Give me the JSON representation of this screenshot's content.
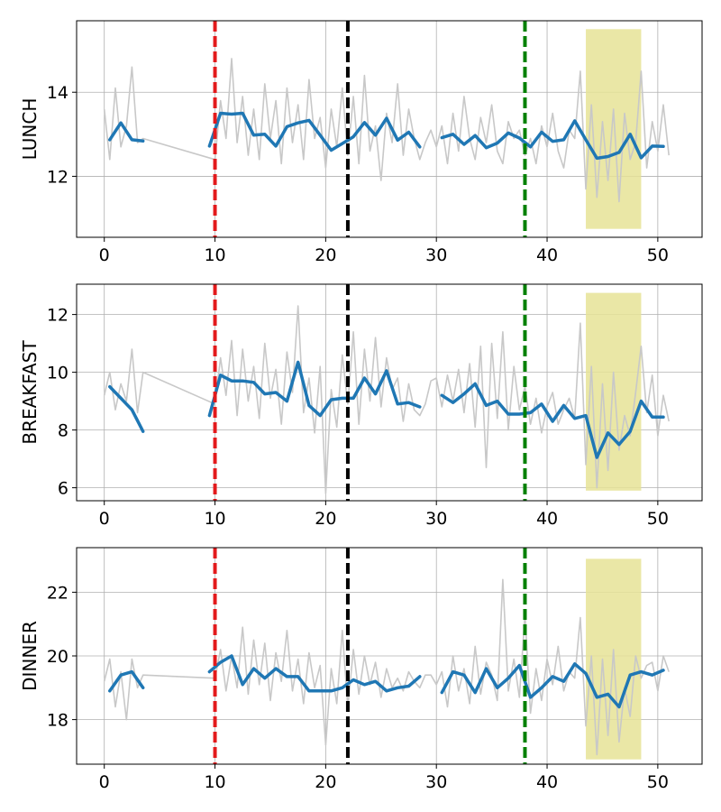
{
  "chart_data": [
    {
      "type": "line",
      "ylabel": "LUNCH",
      "xlim": [
        -2.5,
        54
      ],
      "ylim": [
        10.55,
        15.7
      ],
      "xticks": [
        0,
        10,
        20,
        30,
        40,
        50
      ],
      "yticks": [
        12,
        14
      ],
      "grid": true,
      "vlines": [
        {
          "x": 10,
          "color": "#e31a1c",
          "style": "dashed"
        },
        {
          "x": 22,
          "color": "#000000",
          "style": "dashed"
        },
        {
          "x": 38,
          "color": "#008000",
          "style": "dashed"
        }
      ],
      "shaded_region": {
        "x0": 43.5,
        "x1": 48.5,
        "y0": 10.75,
        "y1": 15.5,
        "color": "#e6e396"
      },
      "raw_series": {
        "color": "#c8c8c8",
        "x": [
          0,
          0.5,
          1,
          1.5,
          2,
          2.5,
          3,
          3.5,
          10,
          10.5,
          11,
          11.5,
          12,
          12.5,
          13,
          13.5,
          14,
          14.5,
          15,
          15.5,
          16,
          16.5,
          17,
          17.5,
          18,
          18.5,
          19,
          19.5,
          20,
          20.5,
          21,
          21.5,
          22,
          22.5,
          23,
          23.5,
          24,
          24.5,
          25,
          25.5,
          26,
          26.5,
          27,
          27.5,
          28,
          28.5,
          29,
          29.5,
          30,
          30.5,
          31,
          31.5,
          32,
          32.5,
          33,
          33.5,
          34,
          34.5,
          35,
          35.5,
          36,
          36.5,
          37,
          37.5,
          38,
          38.5,
          39,
          39.5,
          40,
          40.5,
          41,
          41.5,
          42,
          42.5,
          43,
          43.5,
          44,
          44.5,
          45,
          45.5,
          46,
          46.5,
          47,
          47.5,
          48,
          48.5,
          49,
          49.5,
          50,
          50.5,
          51
        ],
        "values": [
          13.6,
          12.4,
          14.1,
          12.7,
          13.2,
          14.6,
          12.8,
          12.9,
          12.4,
          13.8,
          12.9,
          14.8,
          12.8,
          13.9,
          12.5,
          13.6,
          12.4,
          14.2,
          12.9,
          13.8,
          12.3,
          14.1,
          12.8,
          13.7,
          12.4,
          14.3,
          12.9,
          13.4,
          12.2,
          13.6,
          12.7,
          14.1,
          12.5,
          13.9,
          12.3,
          14.4,
          12.6,
          13.2,
          11.9,
          13.5,
          12.8,
          14.2,
          12.5,
          13.6,
          12.9,
          12.4,
          12.8,
          13.1,
          12.7,
          13.2,
          12.3,
          13.5,
          12.6,
          13.9,
          12.9,
          12.4,
          13.4,
          12.8,
          13.7,
          12.6,
          12.3,
          13.3,
          12.9,
          13.1,
          12.5,
          12.9,
          12.3,
          13.2,
          12.7,
          13.5,
          12.6,
          12.2,
          13.1,
          12.9,
          14.5,
          11.7,
          13.7,
          11.5,
          13.3,
          11.9,
          13.6,
          11.4,
          13.5,
          12.4,
          12.8,
          14.5,
          12.2,
          13.3,
          12.6,
          13.7,
          12.5
        ]
      },
      "smooth_series": {
        "color": "#1f77b4",
        "segments": [
          {
            "x": [
              0.5,
              1.5,
              2.5,
              3.5
            ],
            "y": [
              12.87,
              13.27,
              12.87,
              12.84
            ]
          },
          {
            "x": [
              9.5,
              10.5,
              11.5,
              12.5,
              13.5,
              14.5,
              15.5,
              16.5,
              17.5,
              18.5,
              19.5,
              20.5,
              21.5,
              22.5,
              23.5,
              24.5,
              25.5,
              26.5,
              27.5,
              28.5
            ],
            "y": [
              12.72,
              13.5,
              13.48,
              13.5,
              12.98,
              13.0,
              12.72,
              13.18,
              13.27,
              13.33,
              12.98,
              12.62,
              12.78,
              12.94,
              13.28,
              12.98,
              13.38,
              12.86,
              13.05,
              12.7
            ]
          },
          {
            "x": [
              30.5,
              31.5,
              32.5,
              33.5,
              34.5,
              35.5,
              36.5,
              37.5,
              38.5,
              39.5,
              40.5,
              41.5,
              42.5,
              43.5,
              44.5,
              45.5,
              46.5,
              47.5,
              48.5,
              49.5,
              50.5
            ],
            "y": [
              12.92,
              13.0,
              12.76,
              12.97,
              12.68,
              12.79,
              13.03,
              12.91,
              12.7,
              13.05,
              12.83,
              12.87,
              13.32,
              12.87,
              12.43,
              12.47,
              12.57,
              13.0,
              12.44,
              12.72,
              12.71
            ]
          }
        ]
      }
    },
    {
      "type": "line",
      "ylabel": "BREAKFAST",
      "xlim": [
        -2.5,
        54
      ],
      "ylim": [
        5.55,
        13.05
      ],
      "xticks": [
        0,
        10,
        20,
        30,
        40,
        50
      ],
      "yticks": [
        6,
        8,
        10,
        12
      ],
      "grid": true,
      "vlines": [
        {
          "x": 10,
          "color": "#e31a1c",
          "style": "dashed"
        },
        {
          "x": 22,
          "color": "#000000",
          "style": "dashed"
        },
        {
          "x": 38,
          "color": "#008000",
          "style": "dashed"
        }
      ],
      "shaded_region": {
        "x0": 43.5,
        "x1": 48.5,
        "y0": 5.9,
        "y1": 12.75,
        "color": "#e6e396"
      },
      "raw_series": {
        "color": "#c8c8c8",
        "x": [
          0,
          0.5,
          1,
          1.5,
          2,
          2.5,
          3,
          3.5,
          10,
          10.5,
          11,
          11.5,
          12,
          12.5,
          13,
          13.5,
          14,
          14.5,
          15,
          15.5,
          16,
          16.5,
          17,
          17.5,
          18,
          18.5,
          19,
          19.5,
          20,
          20.5,
          21,
          21.5,
          22,
          22.5,
          23,
          23.5,
          24,
          24.5,
          25,
          25.5,
          26,
          26.5,
          27,
          27.5,
          28,
          28.5,
          29,
          29.5,
          30,
          30.5,
          31,
          31.5,
          32,
          32.5,
          33,
          33.5,
          34,
          34.5,
          35,
          35.5,
          36,
          36.5,
          37,
          37.5,
          38,
          38.5,
          39,
          39.5,
          40,
          40.5,
          41,
          41.5,
          42,
          42.5,
          43,
          43.5,
          44,
          44.5,
          45,
          45.5,
          46,
          46.5,
          47,
          47.5,
          48,
          48.5,
          49,
          49.5,
          50,
          50.5,
          51
        ],
        "values": [
          9.2,
          10.0,
          8.7,
          9.6,
          9.0,
          10.8,
          8.6,
          10.0,
          8.9,
          10.5,
          9.2,
          11.1,
          8.5,
          10.8,
          9.0,
          10.2,
          8.4,
          11.0,
          9.1,
          10.1,
          8.2,
          10.7,
          9.3,
          12.3,
          8.6,
          9.8,
          7.9,
          10.2,
          5.8,
          9.4,
          8.1,
          10.6,
          8.9,
          11.4,
          8.2,
          10.8,
          9.0,
          11.2,
          8.8,
          10.5,
          9.4,
          9.8,
          8.3,
          9.6,
          8.7,
          8.5,
          8.9,
          9.7,
          9.8,
          8.8,
          9.9,
          9.0,
          10.1,
          8.6,
          10.3,
          8.1,
          10.9,
          6.7,
          11.0,
          8.4,
          11.4,
          8.0,
          10.2,
          8.7,
          9.5,
          8.2,
          9.1,
          7.9,
          8.8,
          9.3,
          8.2,
          8.7,
          9.1,
          8.4,
          11.7,
          6.8,
          10.2,
          6.0,
          9.6,
          6.6,
          10.0,
          7.3,
          8.5,
          7.8,
          9.3,
          10.9,
          8.6,
          9.9,
          7.8,
          9.2,
          8.3
        ]
      },
      "smooth_series": {
        "color": "#1f77b4",
        "segments": [
          {
            "x": [
              0.5,
              1.5,
              2.5,
              3.5
            ],
            "y": [
              9.5,
              9.1,
              8.7,
              7.95
            ]
          },
          {
            "x": [
              9.5,
              10.5,
              11.5,
              12.5,
              13.5,
              14.5,
              15.5,
              16.5,
              17.5,
              18.5,
              19.5,
              20.5,
              21.5,
              22.5,
              23.5,
              24.5,
              25.5,
              26.5,
              27.5,
              28.5
            ],
            "y": [
              8.5,
              9.9,
              9.7,
              9.7,
              9.65,
              9.25,
              9.3,
              9.0,
              10.35,
              8.85,
              8.5,
              9.05,
              9.1,
              9.1,
              9.8,
              9.25,
              10.05,
              8.9,
              8.95,
              8.8
            ]
          },
          {
            "x": [
              30.5,
              31.5,
              32.5,
              33.5,
              34.5,
              35.5,
              36.5,
              37.5,
              38.5,
              39.5,
              40.5,
              41.5,
              42.5,
              43.5,
              44.5,
              45.5,
              46.5,
              47.5,
              48.5,
              49.5,
              50.5
            ],
            "y": [
              9.2,
              8.95,
              9.25,
              9.6,
              8.85,
              9.0,
              8.55,
              8.55,
              8.6,
              8.9,
              8.3,
              8.85,
              8.4,
              8.5,
              7.05,
              7.9,
              7.5,
              7.95,
              9.0,
              8.45,
              8.45
            ]
          }
        ]
      }
    },
    {
      "type": "line",
      "ylabel": "DINNER",
      "xlim": [
        -2.5,
        54
      ],
      "ylim": [
        16.6,
        23.4
      ],
      "xticks": [
        0,
        10,
        20,
        30,
        40,
        50
      ],
      "yticks": [
        18,
        20,
        22
      ],
      "grid": true,
      "vlines": [
        {
          "x": 10,
          "color": "#e31a1c",
          "style": "dashed"
        },
        {
          "x": 22,
          "color": "#000000",
          "style": "dashed"
        },
        {
          "x": 38,
          "color": "#008000",
          "style": "dashed"
        }
      ],
      "shaded_region": {
        "x0": 43.5,
        "x1": 48.5,
        "y0": 16.75,
        "y1": 23.05,
        "color": "#e6e396"
      },
      "raw_series": {
        "color": "#c8c8c8",
        "x": [
          0,
          0.5,
          1,
          1.5,
          2,
          2.5,
          3,
          3.5,
          10,
          10.5,
          11,
          11.5,
          12,
          12.5,
          13,
          13.5,
          14,
          14.5,
          15,
          15.5,
          16,
          16.5,
          17,
          17.5,
          18,
          18.5,
          19,
          19.5,
          20,
          20.5,
          21,
          21.5,
          22,
          22.5,
          23,
          23.5,
          24,
          24.5,
          25,
          25.5,
          26,
          26.5,
          27,
          27.5,
          28,
          28.5,
          29,
          29.5,
          30,
          30.5,
          31,
          31.5,
          32,
          32.5,
          33,
          33.5,
          34,
          34.5,
          35,
          35.5,
          36,
          36.5,
          37,
          37.5,
          38,
          38.5,
          39,
          39.5,
          40,
          40.5,
          41,
          41.5,
          42,
          42.5,
          43,
          43.5,
          44,
          44.5,
          45,
          45.5,
          46,
          46.5,
          47,
          47.5,
          48,
          48.5,
          49,
          49.5,
          50,
          50.5,
          51
        ],
        "values": [
          19.2,
          19.9,
          18.4,
          19.5,
          18.0,
          19.9,
          19.0,
          19.4,
          19.3,
          20.2,
          18.9,
          20.0,
          19.0,
          20.9,
          18.8,
          20.5,
          19.1,
          20.4,
          18.6,
          20.1,
          19.2,
          20.8,
          18.9,
          19.9,
          18.5,
          20.1,
          19.0,
          19.7,
          17.2,
          19.6,
          18.5,
          20.8,
          18.4,
          20.2,
          18.8,
          20.0,
          19.1,
          19.8,
          18.7,
          19.6,
          19.0,
          19.3,
          18.9,
          19.5,
          19.2,
          19.0,
          19.4,
          19.4,
          19.1,
          19.5,
          18.4,
          20.0,
          18.9,
          19.6,
          18.5,
          20.3,
          18.8,
          19.8,
          19.4,
          18.6,
          22.4,
          18.9,
          19.9,
          18.7,
          21.3,
          18.2,
          19.6,
          18.6,
          19.9,
          19.1,
          20.3,
          18.9,
          19.5,
          19.3,
          21.2,
          17.8,
          20.0,
          16.9,
          19.9,
          17.5,
          20.2,
          17.3,
          19.0,
          18.1,
          20.0,
          19.3,
          19.7,
          19.8,
          18.9,
          20.0,
          19.5
        ]
      },
      "smooth_series": {
        "color": "#1f77b4",
        "segments": [
          {
            "x": [
              0.5,
              1.5,
              2.5,
              3.5
            ],
            "y": [
              18.9,
              19.4,
              19.5,
              19.0
            ]
          },
          {
            "x": [
              9.5,
              10.5,
              11.5,
              12.5,
              13.5,
              14.5,
              15.5,
              16.5,
              17.5,
              18.5,
              19.5,
              20.5,
              21.5,
              22.5,
              23.5,
              24.5,
              25.5,
              26.5,
              27.5,
              28.5
            ],
            "y": [
              19.5,
              19.8,
              20.0,
              19.1,
              19.6,
              19.3,
              19.6,
              19.35,
              19.35,
              18.9,
              18.9,
              18.9,
              19.0,
              19.25,
              19.1,
              19.2,
              18.9,
              19.0,
              19.05,
              19.35
            ]
          },
          {
            "x": [
              30.5,
              31.5,
              32.5,
              33.5,
              34.5,
              35.5,
              36.5,
              37.5,
              38.5,
              39.5,
              40.5,
              41.5,
              42.5,
              43.5,
              44.5,
              45.5,
              46.5,
              47.5,
              48.5,
              49.5,
              50.5
            ],
            "y": [
              18.85,
              19.5,
              19.4,
              18.85,
              19.6,
              19.0,
              19.3,
              19.7,
              18.7,
              19.0,
              19.35,
              19.2,
              19.75,
              19.45,
              18.7,
              18.8,
              18.4,
              19.4,
              19.5,
              19.4,
              19.55
            ]
          }
        ]
      }
    }
  ]
}
